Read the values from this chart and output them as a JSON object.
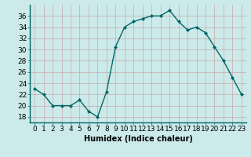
{
  "x": [
    0,
    1,
    2,
    3,
    4,
    5,
    6,
    7,
    8,
    9,
    10,
    11,
    12,
    13,
    14,
    15,
    16,
    17,
    18,
    19,
    20,
    21,
    22,
    23
  ],
  "y": [
    23,
    22,
    20,
    20,
    20,
    21,
    19,
    18,
    22.5,
    30.5,
    34,
    35,
    35.5,
    36,
    36,
    37,
    35,
    33.5,
    34,
    33,
    30.5,
    28,
    25,
    22
  ],
  "line_color": "#006666",
  "marker": "D",
  "marker_size": 2.0,
  "bg_color": "#cceaea",
  "grid_color": "#b0d0d0",
  "xlabel": "Humidex (Indice chaleur)",
  "xlabel_fontsize": 7,
  "xlim": [
    -0.5,
    23.5
  ],
  "ylim": [
    17,
    38
  ],
  "yticks": [
    18,
    20,
    22,
    24,
    26,
    28,
    30,
    32,
    34,
    36
  ],
  "xticks": [
    0,
    1,
    2,
    3,
    4,
    5,
    6,
    7,
    8,
    9,
    10,
    11,
    12,
    13,
    14,
    15,
    16,
    17,
    18,
    19,
    20,
    21,
    22,
    23
  ],
  "tick_fontsize": 6.5,
  "line_width": 1.0
}
